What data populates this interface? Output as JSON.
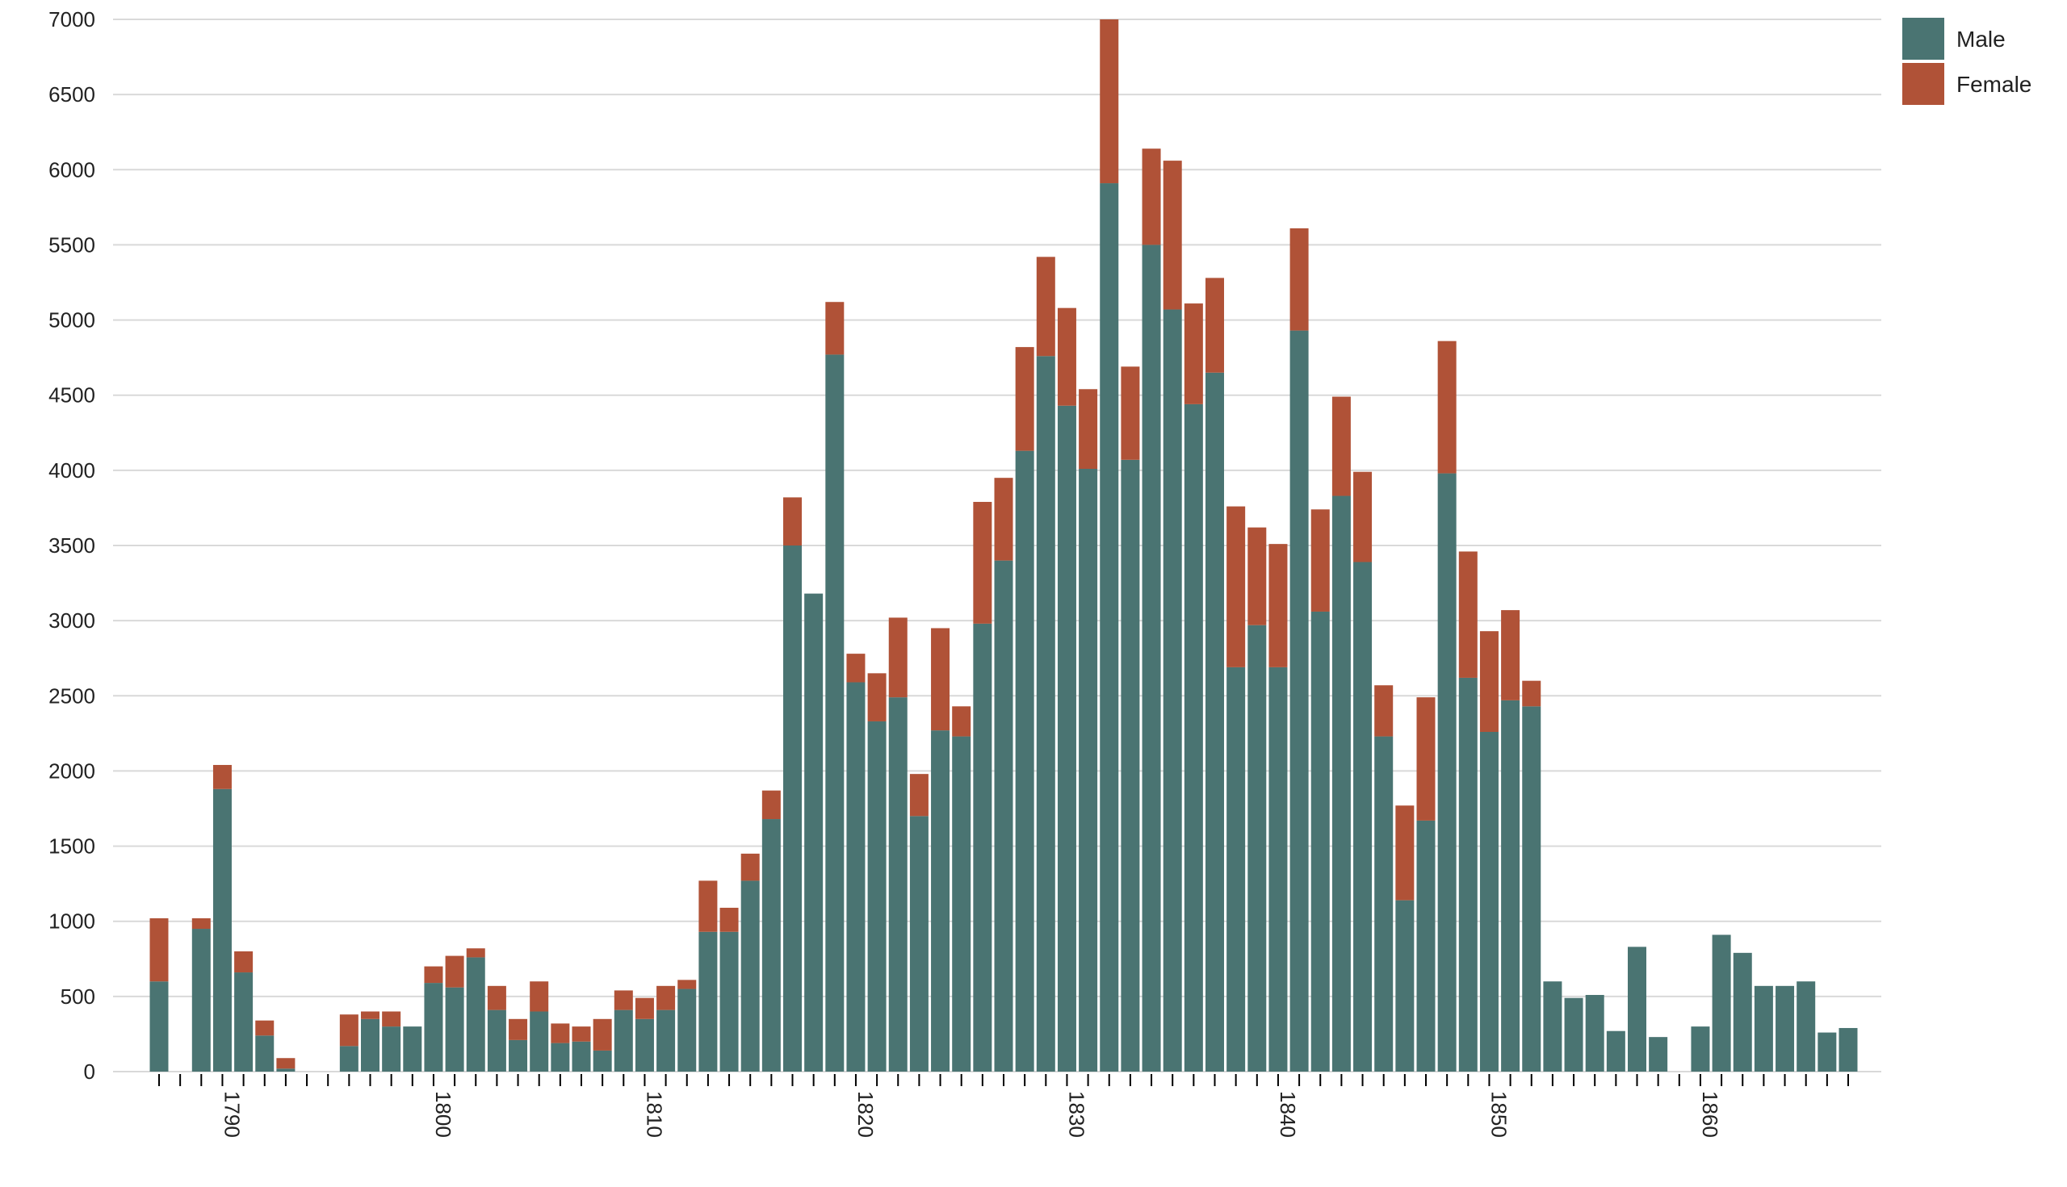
{
  "colors": {
    "male": "#4a7472",
    "female": "#b05237",
    "grid": "#d9d9d9",
    "axis": "#000000",
    "background": "#ffffff"
  },
  "legend": {
    "items": [
      {
        "label": "Male",
        "color": "#4a7472"
      },
      {
        "label": "Female",
        "color": "#b05237"
      }
    ],
    "placement": "top-right"
  },
  "chart_data": {
    "type": "bar",
    "stacked": true,
    "title": "",
    "xlabel": "",
    "ylabel": "",
    "ylim": [
      0,
      7000
    ],
    "yticks": [
      "0",
      "500",
      "1000",
      "1500",
      "2000",
      "2500",
      "3000",
      "3500",
      "4000",
      "4500",
      "5000",
      "5500",
      "6000",
      "6500",
      "7000"
    ],
    "xlim": [
      1787,
      1867
    ],
    "xticks": [
      "1790",
      "1800",
      "1810",
      "1820",
      "1830",
      "1840",
      "1850",
      "1860"
    ],
    "grid": true,
    "x": [
      1787,
      1788,
      1789,
      1790,
      1791,
      1792,
      1793,
      1794,
      1795,
      1796,
      1797,
      1798,
      1799,
      1800,
      1801,
      1802,
      1803,
      1804,
      1805,
      1806,
      1807,
      1808,
      1809,
      1810,
      1811,
      1812,
      1813,
      1814,
      1815,
      1816,
      1817,
      1818,
      1819,
      1820,
      1821,
      1822,
      1823,
      1824,
      1825,
      1826,
      1827,
      1828,
      1829,
      1830,
      1831,
      1832,
      1833,
      1834,
      1835,
      1836,
      1837,
      1838,
      1839,
      1840,
      1841,
      1842,
      1843,
      1844,
      1845,
      1846,
      1847,
      1848,
      1849,
      1850,
      1851,
      1852,
      1853,
      1854,
      1855,
      1856,
      1857,
      1858,
      1859,
      1860,
      1861,
      1862,
      1863,
      1864,
      1865,
      1866,
      1867
    ],
    "series": [
      {
        "name": "Male",
        "values": [
          600,
          0,
          950,
          1880,
          660,
          240,
          20,
          0,
          0,
          170,
          350,
          300,
          300,
          590,
          560,
          760,
          410,
          210,
          400,
          190,
          200,
          140,
          410,
          350,
          410,
          550,
          930,
          930,
          1270,
          1680,
          3500,
          3180,
          4770,
          2590,
          2330,
          2490,
          1700,
          2270,
          2230,
          2980,
          3400,
          4130,
          4760,
          4430,
          4010,
          5910,
          4070,
          5500,
          5070,
          4440,
          4650,
          2690,
          2970,
          2690,
          4930,
          3060,
          3830,
          3390,
          2230,
          1140,
          1670,
          3980,
          2620,
          2260,
          2470,
          2430,
          600,
          490,
          510,
          270,
          830,
          230,
          0,
          300,
          910,
          790,
          570,
          570,
          600,
          260,
          290
        ]
      },
      {
        "name": "Female",
        "values": [
          420,
          0,
          70,
          160,
          140,
          100,
          70,
          0,
          0,
          210,
          50,
          100,
          0,
          110,
          210,
          60,
          160,
          140,
          200,
          130,
          100,
          210,
          130,
          140,
          160,
          60,
          340,
          160,
          180,
          190,
          320,
          0,
          350,
          190,
          320,
          530,
          280,
          680,
          200,
          810,
          550,
          690,
          660,
          650,
          530,
          1090,
          620,
          640,
          990,
          670,
          630,
          1070,
          650,
          820,
          680,
          680,
          660,
          600,
          340,
          630,
          820,
          880,
          840,
          670,
          600,
          170,
          0,
          0,
          0,
          0,
          0,
          0,
          0,
          0,
          0,
          0,
          0,
          0,
          0,
          0,
          0
        ]
      }
    ]
  }
}
